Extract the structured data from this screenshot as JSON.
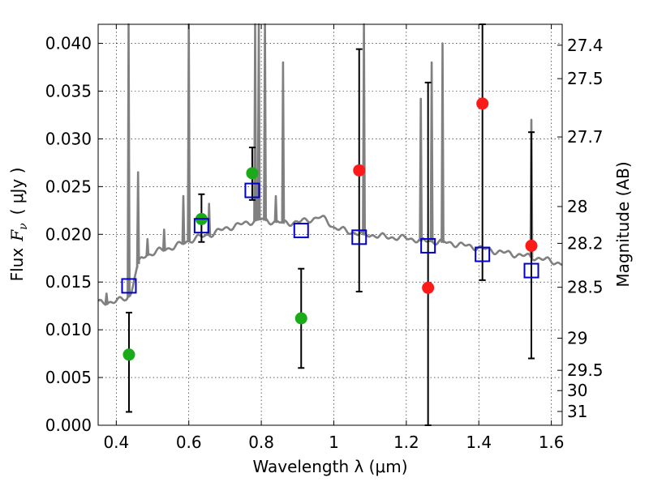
{
  "chart_data": {
    "type": "scatter",
    "xlabel": "Wavelength  λ (μm)",
    "ylabel_prefix": "Flux",
    "ylabel_symbol": "F",
    "ylabel_subscript": "ν",
    "ylabel_unit": "( μJy )",
    "y2label": "Magnitude (AB)",
    "xlim": [
      0.35,
      1.63
    ],
    "ylim": [
      0.0,
      0.042
    ],
    "grid": true,
    "x_ticks": [
      {
        "value": 0.4,
        "label": "0.4"
      },
      {
        "value": 0.6,
        "label": "0.6"
      },
      {
        "value": 0.8,
        "label": "0.8"
      },
      {
        "value": 1.0,
        "label": "1"
      },
      {
        "value": 1.2,
        "label": "1.2"
      },
      {
        "value": 1.4,
        "label": "1.4"
      },
      {
        "value": 1.6,
        "label": "1.6"
      }
    ],
    "y_ticks": [
      {
        "value": 0.0,
        "label": "0.000"
      },
      {
        "value": 0.005,
        "label": "0.005"
      },
      {
        "value": 0.01,
        "label": "0.010"
      },
      {
        "value": 0.015,
        "label": "0.015"
      },
      {
        "value": 0.02,
        "label": "0.020"
      },
      {
        "value": 0.025,
        "label": "0.025"
      },
      {
        "value": 0.03,
        "label": "0.030"
      },
      {
        "value": 0.035,
        "label": "0.035"
      },
      {
        "value": 0.04,
        "label": "0.040"
      }
    ],
    "mag_ticks": [
      {
        "value": 27.4,
        "label": "27.4"
      },
      {
        "value": 27.5,
        "label": "27.5"
      },
      {
        "value": 27.7,
        "label": "27.7"
      },
      {
        "value": 28,
        "label": "28"
      },
      {
        "value": 28.2,
        "label": "28.2"
      },
      {
        "value": 28.5,
        "label": "28.5"
      },
      {
        "value": 29,
        "label": "29"
      },
      {
        "value": 29.5,
        "label": "29.5"
      },
      {
        "value": 30,
        "label": "30"
      },
      {
        "value": 31,
        "label": "31"
      }
    ],
    "continuum": {
      "color": "#808080",
      "points": [
        [
          0.35,
          0.0128
        ],
        [
          0.37,
          0.0129
        ],
        [
          0.39,
          0.0129
        ],
        [
          0.41,
          0.0131
        ],
        [
          0.425,
          0.0133
        ],
        [
          0.44,
          0.0136
        ],
        [
          0.45,
          0.0155
        ],
        [
          0.46,
          0.0168
        ],
        [
          0.47,
          0.0175
        ],
        [
          0.48,
          0.0178
        ],
        [
          0.5,
          0.018
        ],
        [
          0.52,
          0.0183
        ],
        [
          0.54,
          0.0185
        ],
        [
          0.56,
          0.0187
        ],
        [
          0.58,
          0.019
        ],
        [
          0.6,
          0.0193
        ],
        [
          0.62,
          0.0196
        ],
        [
          0.64,
          0.0198
        ],
        [
          0.66,
          0.02
        ],
        [
          0.68,
          0.0203
        ],
        [
          0.7,
          0.0206
        ],
        [
          0.72,
          0.0208
        ],
        [
          0.74,
          0.021
        ],
        [
          0.76,
          0.0212
        ],
        [
          0.78,
          0.0214
        ],
        [
          0.8,
          0.0216
        ],
        [
          0.82,
          0.0214
        ],
        [
          0.84,
          0.0213
        ],
        [
          0.86,
          0.0212
        ],
        [
          0.88,
          0.0212
        ],
        [
          0.9,
          0.0213
        ],
        [
          0.92,
          0.0214
        ],
        [
          0.94,
          0.0216
        ],
        [
          0.96,
          0.0218
        ],
        [
          0.98,
          0.0215
        ],
        [
          1.0,
          0.0207
        ],
        [
          1.02,
          0.0205
        ],
        [
          1.05,
          0.0202
        ],
        [
          1.08,
          0.02
        ],
        [
          1.11,
          0.0199
        ],
        [
          1.15,
          0.0197
        ],
        [
          1.2,
          0.0196
        ],
        [
          1.25,
          0.0193
        ],
        [
          1.3,
          0.0192
        ],
        [
          1.35,
          0.0189
        ],
        [
          1.4,
          0.0186
        ],
        [
          1.45,
          0.0182
        ],
        [
          1.5,
          0.0179
        ],
        [
          1.55,
          0.0176
        ],
        [
          1.6,
          0.0172
        ],
        [
          1.63,
          0.0169
        ]
      ]
    },
    "emission_lines": [
      {
        "x": 0.373,
        "peak": 0.0138
      },
      {
        "x": 0.434,
        "peak": 0.05
      },
      {
        "x": 0.46,
        "peak": 0.0265
      },
      {
        "x": 0.486,
        "peak": 0.0195
      },
      {
        "x": 0.532,
        "peak": 0.0205
      },
      {
        "x": 0.585,
        "peak": 0.024
      },
      {
        "x": 0.6,
        "peak": 0.05
      },
      {
        "x": 0.656,
        "peak": 0.0232
      },
      {
        "x": 0.783,
        "peak": 0.05
      },
      {
        "x": 0.793,
        "peak": 0.05
      },
      {
        "x": 0.81,
        "peak": 0.05
      },
      {
        "x": 0.84,
        "peak": 0.024
      },
      {
        "x": 0.86,
        "peak": 0.038
      },
      {
        "x": 1.083,
        "peak": 0.05
      },
      {
        "x": 1.24,
        "peak": 0.0342
      },
      {
        "x": 1.27,
        "peak": 0.038
      },
      {
        "x": 1.3,
        "peak": 0.04
      },
      {
        "x": 1.545,
        "peak": 0.032
      }
    ],
    "series": [
      {
        "color": "#1aaa1a",
        "marker": "filled-circle",
        "points": [
          {
            "x": 0.435,
            "y": 0.0074,
            "err_low": 0.0014,
            "err_high": 0.0118
          },
          {
            "x": 0.635,
            "y": 0.0216,
            "err_low": 0.0192,
            "err_high": 0.0242
          },
          {
            "x": 0.775,
            "y": 0.0264,
            "err_low": 0.0236,
            "err_high": 0.0291
          },
          {
            "x": 0.91,
            "y": 0.0112,
            "err_low": 0.006,
            "err_high": 0.0164
          }
        ]
      },
      {
        "color": "#ff1a1a",
        "marker": "filled-circle",
        "points": [
          {
            "x": 1.07,
            "y": 0.0267,
            "err_low": 0.014,
            "err_high": 0.0394
          },
          {
            "x": 1.26,
            "y": 0.0144,
            "err_low": 0.0,
            "err_high": 0.0359
          },
          {
            "x": 1.41,
            "y": 0.0337,
            "err_low": 0.0152,
            "err_high": 0.042
          },
          {
            "x": 1.545,
            "y": 0.0188,
            "err_low": 0.007,
            "err_high": 0.0307
          }
        ]
      },
      {
        "color": "#0000cc",
        "marker": "open-square",
        "points": [
          {
            "x": 0.435,
            "y": 0.0146
          },
          {
            "x": 0.635,
            "y": 0.0209
          },
          {
            "x": 0.775,
            "y": 0.0246
          },
          {
            "x": 0.91,
            "y": 0.0204
          },
          {
            "x": 1.07,
            "y": 0.0197
          },
          {
            "x": 1.26,
            "y": 0.0188
          },
          {
            "x": 1.41,
            "y": 0.0179
          },
          {
            "x": 1.545,
            "y": 0.0162
          }
        ]
      }
    ]
  }
}
